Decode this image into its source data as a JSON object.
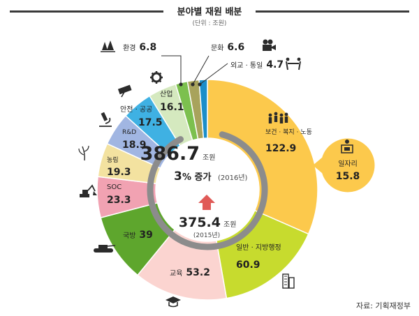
{
  "header": {
    "title": "분야별 재원 배분",
    "subtitle": "(단위 : 조원)"
  },
  "center": {
    "total_value": "386.7",
    "total_unit": "조원",
    "growth_value": "3",
    "growth_unit": "% 증가",
    "growth_year": "(2016년)",
    "prev_value": "375.4",
    "prev_unit": "조원",
    "prev_year": "(2015년)"
  },
  "source": "자료: 기획재정부",
  "colors": {
    "arrow": "#e05a57",
    "inner_ring": "#8c8c8c",
    "leader": "#2c2c2c"
  },
  "chart_data": {
    "type": "pie",
    "title": "분야별 재원 배분",
    "unit": "조원",
    "total": 386.7,
    "slices": [
      {
        "label": "보건 · 복지 · 노동",
        "value": 122.9,
        "color": "#fcc94c",
        "icon": "people-icon"
      },
      {
        "label": "일반 · 지방행정",
        "value": 60.9,
        "color": "#c7db2e",
        "icon": "building-icon"
      },
      {
        "label": "교육",
        "value": 53.2,
        "color": "#fbd4d0",
        "icon": "graduation-cap-icon"
      },
      {
        "label": "국방",
        "value": 39,
        "color": "#5ea62d",
        "icon": "tank-icon"
      },
      {
        "label": "SOC",
        "value": 23.3,
        "color": "#f1a2b2",
        "icon": "excavator-icon"
      },
      {
        "label": "농림",
        "value": 19.3,
        "color": "#f3e2a0",
        "icon": "crop-icon"
      },
      {
        "label": "R&D",
        "value": 18.9,
        "color": "#a1b6e2",
        "icon": "microscope-icon"
      },
      {
        "label": "안전 · 공공",
        "value": 17.5,
        "color": "#3fb1e3",
        "icon": "cctv-icon"
      },
      {
        "label": "산업",
        "value": 16.1,
        "color": "#d5e9bf",
        "icon": "gear-icon"
      },
      {
        "label": "환경",
        "value": 6.8,
        "color": "#7cc04e",
        "icon": "trees-icon"
      },
      {
        "label": "문화",
        "value": 6.6,
        "color": "#a8a35c",
        "icon": "camera-icon"
      },
      {
        "label": "외교 · 통일",
        "value": 4.7,
        "color": "#1b8ec9",
        "icon": "handshake-icon"
      }
    ],
    "callout": {
      "label": "일자리",
      "value": 15.8,
      "color": "#fcc94c",
      "icon": "worker-icon"
    }
  }
}
